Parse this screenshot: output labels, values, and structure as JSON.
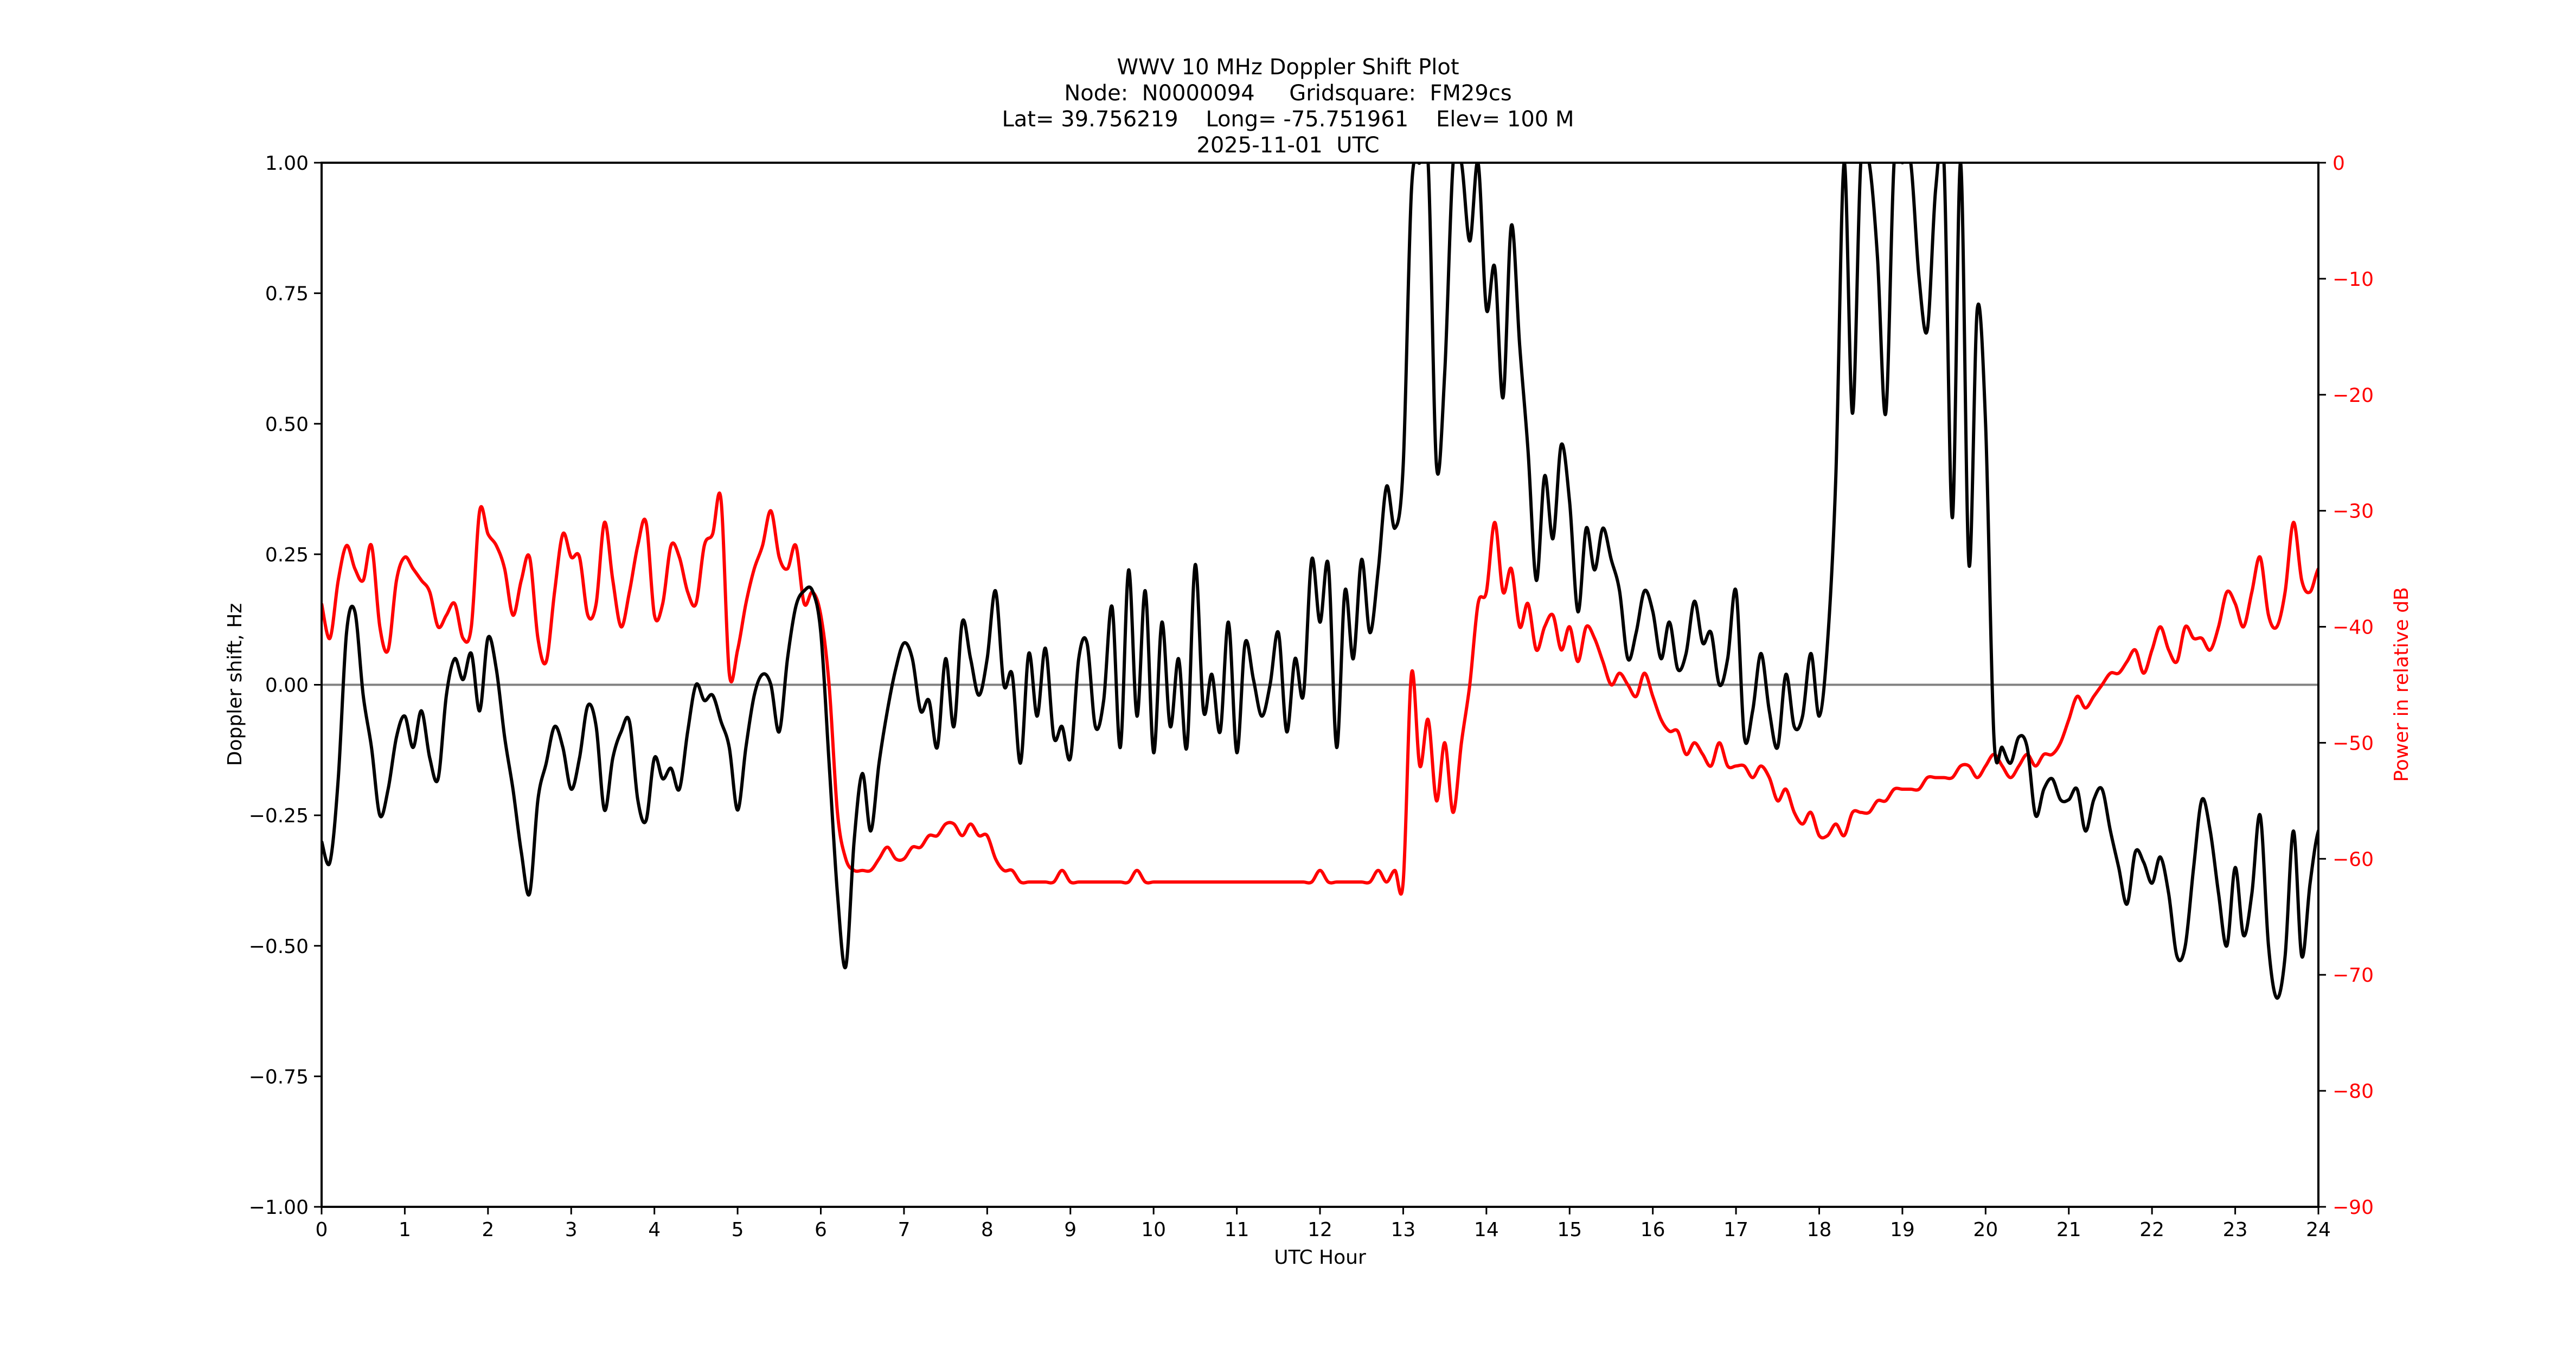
{
  "chart_data": {
    "type": "line",
    "title": "WWV 10 MHz Doppler Shift Plot",
    "subtitle_lines": [
      "Node:  N0000094     Gridsquare:  FM29cs",
      "Lat= 39.756219    Long= -75.751961    Elev= 100 M",
      "2025-11-01  UTC"
    ],
    "xlabel": "UTC Hour",
    "ylabel": "Doppler shift, Hz",
    "ylabel_right": "Power in relative dB",
    "xlim": [
      0,
      24
    ],
    "ylim": [
      -1.0,
      1.0
    ],
    "ylim_right": [
      -90,
      0
    ],
    "x_ticks": [
      "0",
      "1",
      "2",
      "3",
      "4",
      "5",
      "6",
      "7",
      "8",
      "9",
      "10",
      "11",
      "12",
      "13",
      "14",
      "15",
      "16",
      "17",
      "18",
      "19",
      "20",
      "21",
      "22",
      "23",
      "24"
    ],
    "y_ticks": [
      "1.00",
      "0.75",
      "0.50",
      "0.25",
      "0.00",
      "−0.25",
      "−0.50",
      "−0.75",
      "−1.00"
    ],
    "y_ticks_right": [
      "0",
      "−10",
      "−20",
      "−30",
      "−40",
      "−50",
      "−60",
      "−70",
      "−80",
      "−90"
    ],
    "grid": false,
    "reference_line": {
      "y": 0.0,
      "color": "#808080"
    },
    "x_step": 0.1,
    "series": [
      {
        "name": "Doppler shift",
        "axis": "left",
        "color": "#000000",
        "values": [
          -0.3,
          -0.34,
          -0.18,
          0.1,
          0.14,
          -0.02,
          -0.12,
          -0.25,
          -0.2,
          -0.1,
          -0.06,
          -0.12,
          -0.05,
          -0.14,
          -0.18,
          -0.02,
          0.05,
          0.01,
          0.06,
          -0.05,
          0.09,
          0.03,
          -0.1,
          -0.2,
          -0.32,
          -0.4,
          -0.22,
          -0.15,
          -0.08,
          -0.12,
          -0.2,
          -0.14,
          -0.04,
          -0.08,
          -0.24,
          -0.14,
          -0.09,
          -0.07,
          -0.22,
          -0.26,
          -0.14,
          -0.18,
          -0.16,
          -0.2,
          -0.09,
          0.0,
          -0.03,
          -0.02,
          -0.07,
          -0.12,
          -0.24,
          -0.12,
          -0.02,
          0.02,
          0.0,
          -0.09,
          0.05,
          0.15,
          0.18,
          0.18,
          0.1,
          -0.15,
          -0.4,
          -0.54,
          -0.3,
          -0.17,
          -0.28,
          -0.15,
          -0.05,
          0.03,
          0.08,
          0.05,
          -0.05,
          -0.03,
          -0.12,
          0.05,
          -0.08,
          0.12,
          0.05,
          -0.02,
          0.05,
          0.18,
          0.0,
          0.02,
          -0.15,
          0.06,
          -0.06,
          0.07,
          -0.1,
          -0.08,
          -0.14,
          0.05,
          0.08,
          -0.08,
          -0.03,
          0.15,
          -0.12,
          0.22,
          -0.06,
          0.18,
          -0.13,
          0.12,
          -0.08,
          0.05,
          -0.12,
          0.23,
          -0.05,
          0.02,
          -0.09,
          0.12,
          -0.13,
          0.08,
          0.01,
          -0.06,
          0.0,
          0.1,
          -0.09,
          0.05,
          -0.02,
          0.24,
          0.12,
          0.23,
          -0.12,
          0.18,
          0.05,
          0.24,
          0.1,
          0.22,
          0.38,
          0.3,
          0.42,
          0.95,
          1.0,
          1.0,
          0.42,
          0.6,
          1.0,
          1.0,
          0.85,
          1.0,
          0.72,
          0.8,
          0.55,
          0.88,
          0.65,
          0.45,
          0.2,
          0.4,
          0.28,
          0.46,
          0.35,
          0.14,
          0.3,
          0.22,
          0.3,
          0.24,
          0.18,
          0.05,
          0.1,
          0.18,
          0.14,
          0.05,
          0.12,
          0.03,
          0.06,
          0.16,
          0.08,
          0.1,
          0.0,
          0.05,
          0.18,
          -0.1,
          -0.05,
          0.06,
          -0.05,
          -0.12,
          0.02,
          -0.08,
          -0.06,
          0.06,
          -0.06,
          0.08,
          0.4,
          1.0,
          0.52,
          1.0,
          1.0,
          0.82,
          0.52,
          1.0,
          1.0,
          1.0,
          0.78,
          0.68,
          0.95,
          1.0,
          0.32,
          1.0,
          0.23,
          0.72,
          0.5,
          -0.1,
          -0.12,
          -0.15,
          -0.1,
          -0.12,
          -0.25,
          -0.2,
          -0.18,
          -0.22,
          -0.22,
          -0.2,
          -0.28,
          -0.22,
          -0.2,
          -0.28,
          -0.35,
          -0.42,
          -0.32,
          -0.34,
          -0.38,
          -0.33,
          -0.4,
          -0.52,
          -0.5,
          -0.35,
          -0.22,
          -0.28,
          -0.4,
          -0.5,
          -0.35,
          -0.48,
          -0.4,
          -0.25,
          -0.5,
          -0.6,
          -0.52,
          -0.28,
          -0.52,
          -0.38,
          -0.28,
          -0.28
        ]
      },
      {
        "name": "Power",
        "axis": "right",
        "color": "#ff0000",
        "values": [
          -38,
          -41,
          -36,
          -33,
          -35,
          -36,
          -33,
          -40,
          -42,
          -36,
          -34,
          -35,
          -36,
          -37,
          -40,
          -39,
          -38,
          -41,
          -40,
          -30,
          -32,
          -33,
          -35,
          -39,
          -36,
          -34,
          -41,
          -43,
          -37,
          -32,
          -34,
          -34,
          -39,
          -38,
          -31,
          -36,
          -40,
          -37,
          -33,
          -31,
          -39,
          -38,
          -33,
          -34,
          -37,
          -38,
          -33,
          -32,
          -29,
          -44,
          -42,
          -38,
          -35,
          -33,
          -30,
          -34,
          -35,
          -33,
          -38,
          -37,
          -39,
          -45,
          -56,
          -60,
          -61,
          -61,
          -61,
          -60,
          -59,
          -60,
          -60,
          -59,
          -59,
          -58,
          -58,
          -57,
          -57,
          -58,
          -57,
          -58,
          -58,
          -60,
          -61,
          -61,
          -62,
          -62,
          -62,
          -62,
          -62,
          -61,
          -62,
          -62,
          -62,
          -62,
          -62,
          -62,
          -62,
          -62,
          -61,
          -62,
          -62,
          -62,
          -62,
          -62,
          -62,
          -62,
          -62,
          -62,
          -62,
          -62,
          -62,
          -62,
          -62,
          -62,
          -62,
          -62,
          -62,
          -62,
          -62,
          -62,
          -61,
          -62,
          -62,
          -62,
          -62,
          -62,
          -62,
          -61,
          -62,
          -61,
          -62,
          -44,
          -52,
          -48,
          -55,
          -50,
          -56,
          -50,
          -45,
          -38,
          -37,
          -31,
          -37,
          -35,
          -40,
          -38,
          -42,
          -40,
          -39,
          -42,
          -40,
          -43,
          -40,
          -41,
          -43,
          -45,
          -44,
          -45,
          -46,
          -44,
          -46,
          -48,
          -49,
          -49,
          -51,
          -50,
          -51,
          -52,
          -50,
          -52,
          -52,
          -52,
          -53,
          -52,
          -53,
          -55,
          -54,
          -56,
          -57,
          -56,
          -58,
          -58,
          -57,
          -58,
          -56,
          -56,
          -56,
          -55,
          -55,
          -54,
          -54,
          -54,
          -54,
          -53,
          -53,
          -53,
          -53,
          -52,
          -52,
          -53,
          -52,
          -51,
          -52,
          -53,
          -52,
          -51,
          -52,
          -51,
          -51,
          -50,
          -48,
          -46,
          -47,
          -46,
          -45,
          -44,
          -44,
          -43,
          -42,
          -44,
          -42,
          -40,
          -42,
          -43,
          -40,
          -41,
          -41,
          -42,
          -40,
          -37,
          -38,
          -40,
          -37,
          -34,
          -39,
          -40,
          -37,
          -31,
          -36,
          -37,
          -35,
          -35
        ]
      }
    ]
  }
}
